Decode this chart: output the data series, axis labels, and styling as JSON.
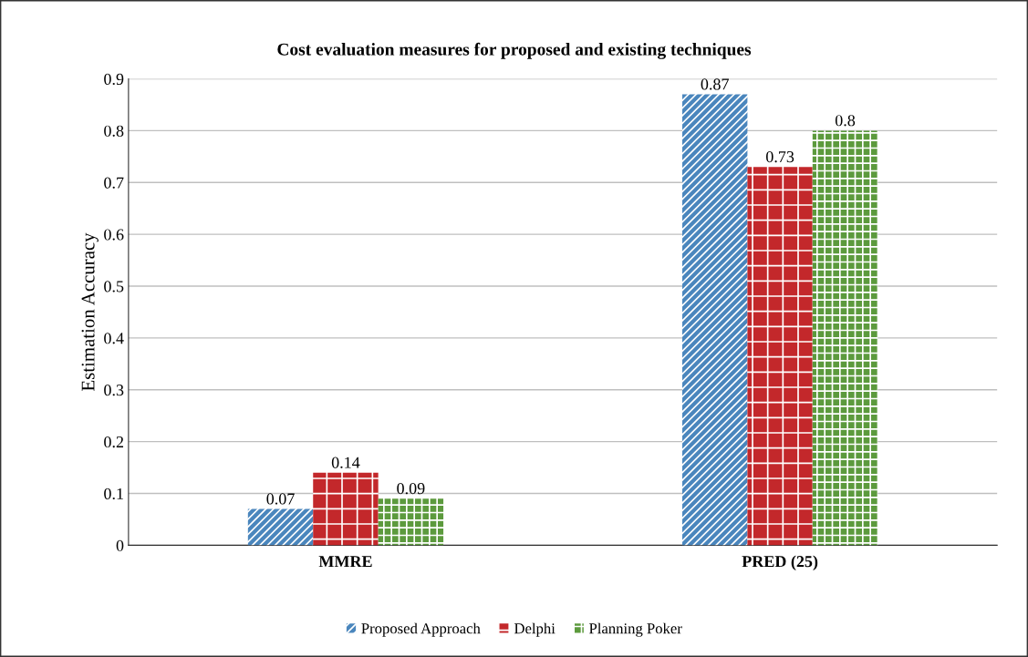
{
  "chart_data": {
    "type": "bar",
    "title": "Cost evaluation measures for proposed and existing techniques",
    "ylabel": "Estimation Accuracy",
    "categories": [
      "MMRE",
      "PRED (25)"
    ],
    "series": [
      {
        "name": "Proposed Approach",
        "color": "#4a86bd",
        "values": [
          0.07,
          0.87
        ]
      },
      {
        "name": "Delphi",
        "color": "#c3282b",
        "values": [
          0.14,
          0.73
        ]
      },
      {
        "name": "Planning Poker",
        "color": "#5c9a3d",
        "values": [
          0.09,
          0.8
        ]
      }
    ],
    "ylim": [
      0,
      0.9
    ],
    "yticks": [
      0,
      0.1,
      0.2,
      0.3,
      0.4,
      0.5,
      0.6,
      0.7,
      0.8,
      0.9
    ],
    "grid": "y",
    "legend": "bottom",
    "data_labels": true
  }
}
